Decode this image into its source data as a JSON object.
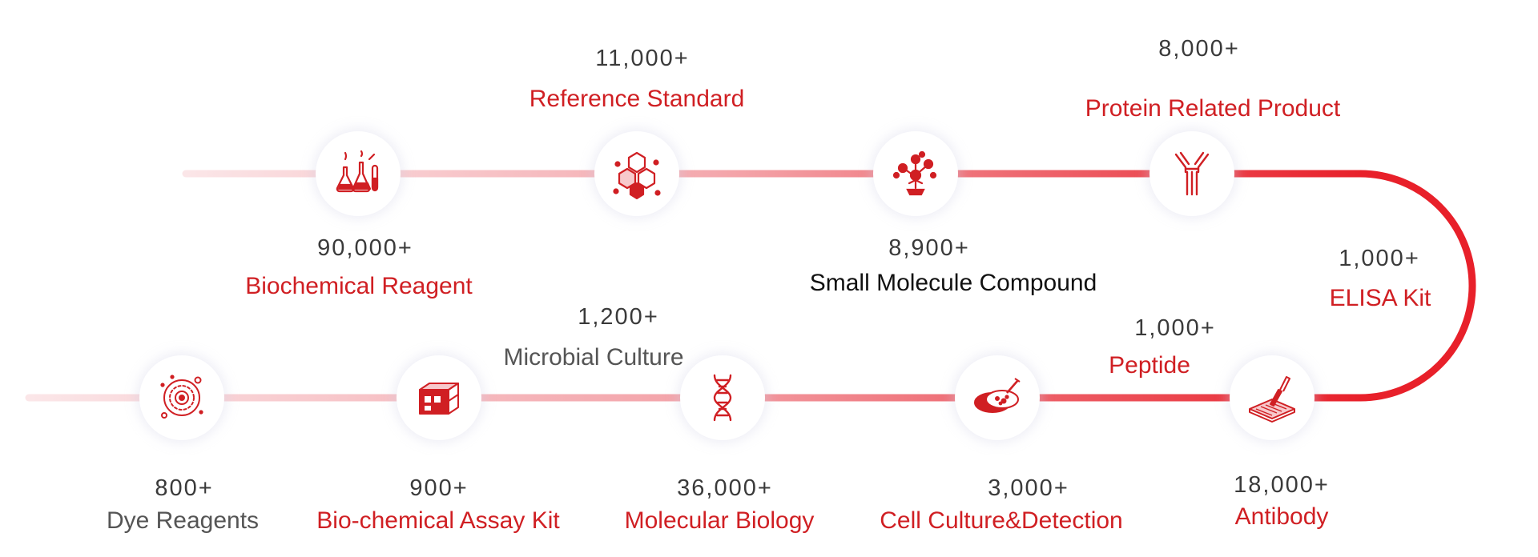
{
  "categories": [
    {
      "id": "biochemical-reagent",
      "count": "90,000+",
      "label": "Biochemical Reagent",
      "icon": "flasks-icon"
    },
    {
      "id": "reference-standard",
      "count": "11,000+",
      "label": "Reference Standard",
      "icon": "hexagon-molecule-icon"
    },
    {
      "id": "small-molecule-compound",
      "count": "8,900+",
      "label": "Small Molecule Compound",
      "icon": "molecule-tree-icon"
    },
    {
      "id": "protein-related-product",
      "count": "8,000+",
      "label": "Protein Related Product",
      "icon": "antibody-y-icon"
    },
    {
      "id": "elisa-kit",
      "count": "1,000+",
      "label": "ELISA Kit",
      "icon": "pipette-plate-icon"
    },
    {
      "id": "antibody",
      "count": "18,000+",
      "label": "Antibody",
      "icon": "pipette-plate-icon"
    },
    {
      "id": "peptide",
      "count": "1,000+",
      "label": "Peptide",
      "icon": "petri-dish-icon"
    },
    {
      "id": "cell-culture-detection",
      "count": "3,000+",
      "label": "Cell Culture&Detection",
      "icon": "petri-dish-icon"
    },
    {
      "id": "molecular-biology",
      "count": "36,000+",
      "label": "Molecular Biology",
      "icon": "dna-helix-icon"
    },
    {
      "id": "microbial-culture",
      "count": "1,200+",
      "label": "Microbial Culture",
      "icon": "dna-helix-icon"
    },
    {
      "id": "bio-chemical-assay-kit",
      "count": "900+",
      "label": "Bio-chemical Assay Kit",
      "icon": "assay-box-icon"
    },
    {
      "id": "dye-reagents",
      "count": "800+",
      "label": "Dye Reagents",
      "icon": "cell-circle-icon"
    }
  ],
  "colors": {
    "accent": "#d01f23",
    "track_light": "#fbe4e6",
    "track_strong": "#e8202a",
    "count_text": "#3a3a3a",
    "dark_label": "#111111",
    "gray_label": "#555555"
  }
}
